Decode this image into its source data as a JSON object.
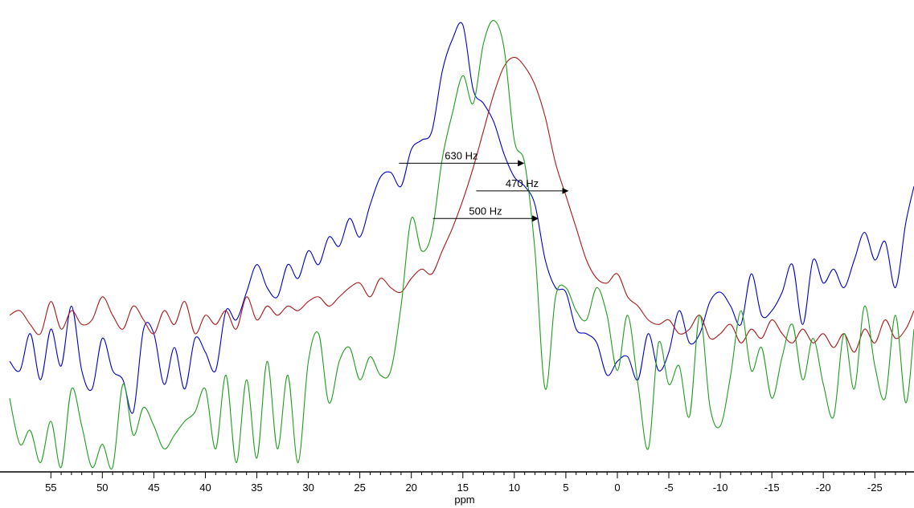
{
  "chart_data": {
    "type": "line",
    "title": "",
    "xlabel": "ppm",
    "ylabel": "",
    "xlim": [
      59.0,
      -28.8
    ],
    "ylim": [
      0,
      1
    ],
    "grid": false,
    "legend": "none",
    "x_ticks": [
      55,
      50,
      45,
      40,
      35,
      30,
      25,
      20,
      15,
      10,
      5,
      0,
      -5,
      -10,
      -15,
      -20,
      -25
    ],
    "series": [
      {
        "color": "#0000cc",
        "x": [
          59.0,
          58.0,
          57.0,
          56.0,
          55.0,
          54.0,
          53.0,
          52.0,
          51.0,
          50.0,
          49.0,
          48.0,
          47.0,
          46.0,
          45.0,
          44.0,
          43.0,
          42.0,
          41.0,
          40.0,
          39.0,
          38.0,
          37.0,
          36.0,
          35.0,
          34.0,
          33.0,
          32.0,
          31.0,
          30.0,
          29.0,
          28.0,
          27.0,
          26.0,
          25.0,
          24.0,
          23.0,
          22.0,
          21.0,
          20.0,
          19.0,
          18.0,
          17.0,
          16.0,
          15.0,
          14.0,
          13.0,
          12.0,
          11.0,
          10.0,
          9.0,
          8.0,
          7.0,
          6.0,
          5.0,
          4.0,
          3.0,
          2.0,
          1.0,
          0.0,
          -1.0,
          -2.0,
          -3.0,
          -4.0,
          -5.0,
          -6.0,
          -7.0,
          -8.0,
          -9.0,
          -10.0,
          -11.0,
          -12.0,
          -13.0,
          -14.0,
          -15.0,
          -16.0,
          -17.0,
          -18.0,
          -19.0,
          -20.0,
          -21.0,
          -22.0,
          -23.0,
          -24.0,
          -25.0,
          -26.0,
          -27.0,
          -28.0,
          -28.8
        ],
        "y": [
          0.24,
          0.22,
          0.3,
          0.2,
          0.31,
          0.23,
          0.36,
          0.22,
          0.18,
          0.29,
          0.22,
          0.2,
          0.13,
          0.31,
          0.3,
          0.19,
          0.27,
          0.18,
          0.29,
          0.26,
          0.22,
          0.35,
          0.33,
          0.39,
          0.45,
          0.4,
          0.38,
          0.45,
          0.42,
          0.48,
          0.45,
          0.51,
          0.49,
          0.55,
          0.51,
          0.58,
          0.64,
          0.65,
          0.62,
          0.7,
          0.72,
          0.74,
          0.87,
          0.94,
          0.97,
          0.83,
          0.8,
          0.76,
          0.69,
          0.64,
          0.62,
          0.58,
          0.46,
          0.4,
          0.39,
          0.31,
          0.3,
          0.28,
          0.21,
          0.24,
          0.25,
          0.2,
          0.3,
          0.22,
          0.26,
          0.35,
          0.28,
          0.3,
          0.37,
          0.39,
          0.36,
          0.32,
          0.43,
          0.34,
          0.35,
          0.39,
          0.45,
          0.32,
          0.46,
          0.41,
          0.44,
          0.4,
          0.46,
          0.52,
          0.46,
          0.5,
          0.4,
          0.54,
          0.62
        ]
      },
      {
        "color": "#aa1a1a",
        "x": [
          59.0,
          58.0,
          57.0,
          56.0,
          55.0,
          54.0,
          53.0,
          52.0,
          51.0,
          50.0,
          49.0,
          48.0,
          47.0,
          46.0,
          45.0,
          44.0,
          43.0,
          42.0,
          41.0,
          40.0,
          39.0,
          38.0,
          37.0,
          36.0,
          35.0,
          34.0,
          33.0,
          32.0,
          31.0,
          30.0,
          29.0,
          28.0,
          27.0,
          26.0,
          25.0,
          24.0,
          23.0,
          22.0,
          21.0,
          20.0,
          19.0,
          18.0,
          17.0,
          16.0,
          15.0,
          14.0,
          13.0,
          12.0,
          11.0,
          10.0,
          9.0,
          8.0,
          7.0,
          6.0,
          5.0,
          4.0,
          3.0,
          2.0,
          1.0,
          0.0,
          -1.0,
          -2.0,
          -3.0,
          -4.0,
          -5.0,
          -6.0,
          -7.0,
          -8.0,
          -9.0,
          -10.0,
          -11.0,
          -12.0,
          -13.0,
          -14.0,
          -15.0,
          -16.0,
          -17.0,
          -18.0,
          -19.0,
          -20.0,
          -21.0,
          -22.0,
          -23.0,
          -24.0,
          -25.0,
          -26.0,
          -27.0,
          -28.0,
          -28.8
        ],
        "y": [
          0.34,
          0.35,
          0.32,
          0.3,
          0.37,
          0.31,
          0.35,
          0.32,
          0.33,
          0.38,
          0.34,
          0.31,
          0.36,
          0.33,
          0.3,
          0.35,
          0.32,
          0.37,
          0.3,
          0.34,
          0.32,
          0.35,
          0.31,
          0.38,
          0.33,
          0.36,
          0.34,
          0.36,
          0.35,
          0.37,
          0.38,
          0.36,
          0.38,
          0.4,
          0.41,
          0.38,
          0.42,
          0.4,
          0.39,
          0.42,
          0.44,
          0.43,
          0.48,
          0.53,
          0.59,
          0.66,
          0.74,
          0.82,
          0.88,
          0.9,
          0.88,
          0.84,
          0.77,
          0.67,
          0.6,
          0.53,
          0.46,
          0.42,
          0.41,
          0.43,
          0.38,
          0.36,
          0.33,
          0.32,
          0.33,
          0.3,
          0.31,
          0.34,
          0.29,
          0.3,
          0.32,
          0.28,
          0.31,
          0.29,
          0.33,
          0.3,
          0.28,
          0.31,
          0.28,
          0.3,
          0.27,
          0.3,
          0.26,
          0.31,
          0.28,
          0.33,
          0.29,
          0.31,
          0.35
        ]
      },
      {
        "color": "#1e9e1e",
        "x": [
          59.0,
          58.0,
          57.0,
          56.0,
          55.0,
          54.0,
          53.0,
          52.0,
          51.0,
          50.0,
          49.0,
          48.0,
          47.0,
          46.0,
          45.0,
          44.0,
          43.0,
          42.0,
          41.0,
          40.0,
          39.0,
          38.0,
          37.0,
          36.0,
          35.0,
          34.0,
          33.0,
          32.0,
          31.0,
          30.0,
          29.0,
          28.0,
          27.0,
          26.0,
          25.0,
          24.0,
          23.0,
          22.0,
          21.0,
          20.0,
          19.0,
          18.0,
          17.0,
          16.0,
          15.0,
          14.0,
          13.0,
          12.0,
          11.0,
          10.0,
          9.0,
          8.0,
          7.0,
          6.0,
          5.0,
          4.0,
          3.0,
          2.0,
          1.0,
          0.0,
          -1.0,
          -2.0,
          -3.0,
          -4.0,
          -5.0,
          -6.0,
          -7.0,
          -8.0,
          -9.0,
          -10.0,
          -11.0,
          -12.0,
          -13.0,
          -14.0,
          -15.0,
          -16.0,
          -17.0,
          -18.0,
          -19.0,
          -20.0,
          -21.0,
          -22.0,
          -23.0,
          -24.0,
          -25.0,
          -26.0,
          -27.0,
          -28.0,
          -28.8
        ],
        "y": [
          0.16,
          0.06,
          0.09,
          0.02,
          0.11,
          0.01,
          0.18,
          0.1,
          0.01,
          0.06,
          0.01,
          0.19,
          0.08,
          0.14,
          0.1,
          0.05,
          0.08,
          0.11,
          0.13,
          0.18,
          0.05,
          0.21,
          0.02,
          0.2,
          0.03,
          0.24,
          0.05,
          0.21,
          0.02,
          0.24,
          0.3,
          0.15,
          0.24,
          0.27,
          0.2,
          0.25,
          0.21,
          0.22,
          0.36,
          0.55,
          0.48,
          0.52,
          0.68,
          0.78,
          0.86,
          0.8,
          0.93,
          0.98,
          0.92,
          0.72,
          0.67,
          0.48,
          0.18,
          0.38,
          0.4,
          0.35,
          0.33,
          0.4,
          0.34,
          0.22,
          0.34,
          0.19,
          0.05,
          0.28,
          0.19,
          0.23,
          0.12,
          0.34,
          0.14,
          0.1,
          0.21,
          0.35,
          0.22,
          0.27,
          0.16,
          0.25,
          0.32,
          0.2,
          0.29,
          0.19,
          0.12,
          0.3,
          0.18,
          0.36,
          0.23,
          0.16,
          0.34,
          0.15,
          0.31
        ]
      }
    ],
    "annotations": [
      {
        "label": "630 Hz",
        "x_start": 21.2,
        "x_end": 9.1,
        "y": 0.67
      },
      {
        "label": "470 Hz",
        "x_start": 13.7,
        "x_end": 4.8,
        "y": 0.61
      },
      {
        "label": "500 Hz",
        "x_start": 17.9,
        "x_end": 7.7,
        "y": 0.55
      }
    ]
  }
}
